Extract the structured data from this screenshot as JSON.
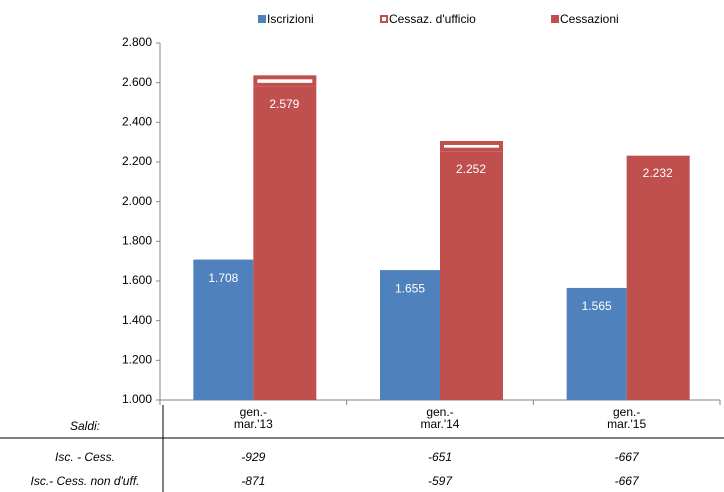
{
  "chart_data": {
    "type": "bar",
    "categories": [
      "gen.-\nmar.'13",
      "gen.-\nmar.'14",
      "gen.-\nmar.'15"
    ],
    "series": [
      {
        "name": "Iscrizioni",
        "color": "#4f81bd",
        "values": [
          1708,
          1655,
          1565
        ],
        "value_labels": [
          "1.708",
          "1.655",
          "1.565"
        ]
      },
      {
        "name": "Cessaz. d'ufficio",
        "color": "#ffffff",
        "values": [
          58,
          54,
          0
        ]
      },
      {
        "name": "Cessazioni",
        "color": "#c0504d",
        "values": [
          2579,
          2252,
          2232
        ],
        "value_labels": [
          "2.579",
          "2.252",
          "2.232"
        ]
      }
    ],
    "ylim": [
      1000,
      2800
    ],
    "yticks": [
      {
        "value": 1000,
        "label": "1.000"
      },
      {
        "value": 1200,
        "label": "1.200"
      },
      {
        "value": 1400,
        "label": "1.400"
      },
      {
        "value": 1600,
        "label": "1.600"
      },
      {
        "value": 1800,
        "label": "1.800"
      },
      {
        "value": 2000,
        "label": "2.000"
      },
      {
        "value": 2200,
        "label": "2.200"
      },
      {
        "value": 2400,
        "label": "2.400"
      },
      {
        "value": 2600,
        "label": "2.600"
      },
      {
        "value": 2800,
        "label": "2.800"
      }
    ],
    "grid": false
  },
  "table": {
    "header": "Saldi:",
    "rows": [
      {
        "label": "Isc. - Cess.",
        "values": [
          -929,
          -651,
          -667
        ]
      },
      {
        "label": "Isc.- Cess. non d'uff.",
        "values": [
          -871,
          -597,
          -667
        ]
      }
    ]
  }
}
